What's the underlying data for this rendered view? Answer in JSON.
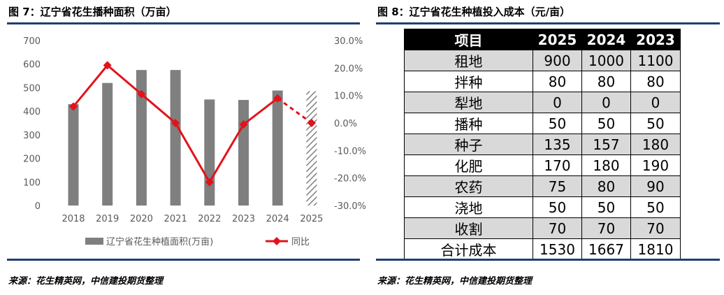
{
  "left_title": "图 7：辽宁省花生播种面积（万亩）",
  "right_title": "图 8：辽宁省花生种植投入成本（元/亩）",
  "left_source": "来源：花生精英网，中信建投期货整理",
  "right_source": "来源：花生精英网，中信建投期货整理",
  "colors": {
    "bar": "#7f7f7f",
    "line": "#e3121b",
    "rule": "#1f3f73",
    "header_bg": "#000000",
    "shade": "#d9d9d9"
  },
  "chart_data": {
    "type": "bar+line",
    "categories": [
      "2018",
      "2019",
      "2020",
      "2021",
      "2022",
      "2023",
      "2024",
      "2025"
    ],
    "series": [
      {
        "name": "辽宁省花生种植面积(万亩)",
        "type": "bar",
        "axis": "left",
        "values": [
          430,
          520,
          575,
          575,
          450,
          448,
          488,
          485
        ],
        "hatched_last": true
      },
      {
        "name": "同比",
        "type": "line",
        "axis": "right",
        "values": [
          6.0,
          21.0,
          10.5,
          0.0,
          -21.5,
          -0.5,
          9.0,
          0.0
        ],
        "dashed_last_segment": true
      }
    ],
    "left_axis": {
      "ylim": [
        0,
        700
      ],
      "ticks": [
        "0",
        "100",
        "200",
        "300",
        "400",
        "500",
        "600",
        "700"
      ]
    },
    "right_axis": {
      "ylim": [
        -30,
        30
      ],
      "ticks": [
        "30.0%",
        "20.0%",
        "10.0%",
        "0.0%",
        "-10.0%",
        "-20.0%",
        "-30.0%"
      ]
    },
    "legend_placement": "bottom"
  },
  "table": {
    "headers": [
      "项目",
      "2025",
      "2024",
      "2023"
    ],
    "rows": [
      [
        "租地",
        "900",
        "1000",
        "1100"
      ],
      [
        "拌种",
        "80",
        "80",
        "80"
      ],
      [
        "犁地",
        "0",
        "0",
        "0"
      ],
      [
        "播种",
        "50",
        "50",
        "50"
      ],
      [
        "种子",
        "135",
        "157",
        "180"
      ],
      [
        "化肥",
        "170",
        "180",
        "190"
      ],
      [
        "农药",
        "75",
        "80",
        "90"
      ],
      [
        "浇地",
        "50",
        "50",
        "50"
      ],
      [
        "收割",
        "70",
        "70",
        "70"
      ],
      [
        "合计成本",
        "1530",
        "1667",
        "1810"
      ]
    ]
  }
}
